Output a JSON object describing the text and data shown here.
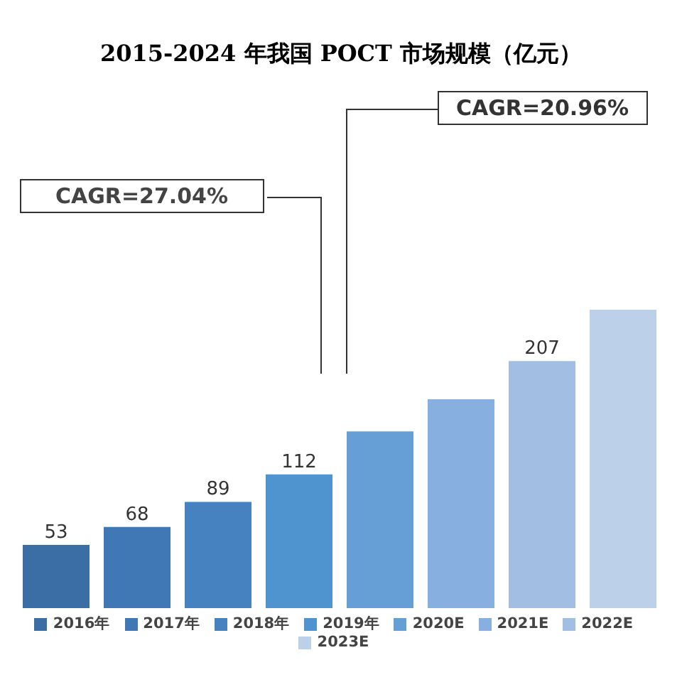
{
  "chart_data": {
    "type": "bar",
    "title": "2015-2024 年我国 POCT 市场规模（亿元）",
    "categories": [
      null
    ],
    "series": [
      {
        "name": "2016年",
        "color": "#3b6ea5",
        "values": [
          53
        ],
        "value_labels": [
          "53"
        ]
      },
      {
        "name": "2017年",
        "color": "#3f78b5",
        "values": [
          68
        ],
        "value_labels": [
          "68"
        ]
      },
      {
        "name": "2018年",
        "color": "#4682bf",
        "values": [
          89
        ],
        "value_labels": [
          "89"
        ]
      },
      {
        "name": "2019年",
        "color": "#4f93cf",
        "values": [
          112
        ],
        "value_labels": [
          "112"
        ]
      },
      {
        "name": "2020E",
        "color": "#659fd6",
        "values": [
          148
        ],
        "value_labels": [
          null
        ]
      },
      {
        "name": "2021E",
        "color": "#87afe0",
        "values": [
          175
        ],
        "value_labels": [
          null
        ]
      },
      {
        "name": "2022E",
        "color": "#a2bfe3",
        "values": [
          207
        ],
        "value_labels": [
          "207"
        ]
      },
      {
        "name": "2023E",
        "color": "#bdd0ea",
        "values": [
          250
        ],
        "value_labels": [
          null
        ]
      }
    ],
    "annotations": [
      "CAGR=27.04%",
      "CAGR=20.96%"
    ],
    "legend": "bottom"
  }
}
